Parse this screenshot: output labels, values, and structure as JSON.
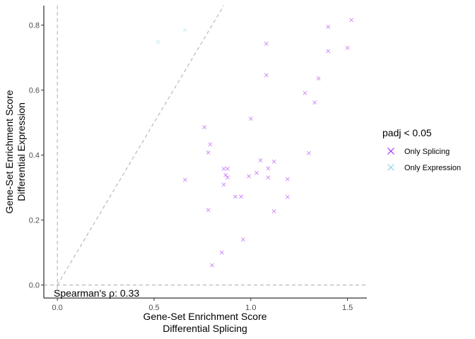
{
  "chart_data": {
    "type": "scatter",
    "xlabel": [
      "Gene-Set Enrichment Score",
      "Differential Splicing"
    ],
    "ylabel": [
      "Gene-Set Enrichment Score",
      "Differential Expression"
    ],
    "xlim": [
      -0.07,
      1.6
    ],
    "ylim": [
      -0.04,
      0.86
    ],
    "xticks": [
      0.0,
      0.5,
      1.0,
      1.5
    ],
    "xtick_labels": [
      "0.0",
      "0.5",
      "1.0",
      "1.5"
    ],
    "yticks": [
      0.0,
      0.2,
      0.4,
      0.6,
      0.8
    ],
    "ytick_labels": [
      "0.0",
      "0.2",
      "0.4",
      "0.6",
      "0.8"
    ],
    "grid": false,
    "reference_lines": [
      {
        "type": "vline",
        "x": 0,
        "style": "dashed",
        "color": "#b3b3b3"
      },
      {
        "type": "hline",
        "y": 0,
        "style": "dashed",
        "color": "#b3b3b3"
      },
      {
        "type": "diagonal",
        "slope": 1,
        "intercept": 0,
        "style": "dashed",
        "color": "#b3b3b3"
      }
    ],
    "annotation": "Spearman's ρ: 0.33",
    "legend": {
      "title": "padj < 0.05",
      "placement": "right",
      "entries": [
        "Only Splicing",
        "Only Expression"
      ]
    },
    "series": [
      {
        "name": "Only Splicing",
        "color": "#a020f0",
        "marker": "x",
        "points": [
          [
            1.52,
            0.816
          ],
          [
            1.4,
            0.795
          ],
          [
            1.4,
            0.72
          ],
          [
            1.5,
            0.73
          ],
          [
            1.08,
            0.743
          ],
          [
            1.08,
            0.646
          ],
          [
            1.35,
            0.636
          ],
          [
            1.28,
            0.591
          ],
          [
            1.33,
            0.562
          ],
          [
            1.0,
            0.512
          ],
          [
            0.76,
            0.486
          ],
          [
            0.79,
            0.433
          ],
          [
            0.78,
            0.408
          ],
          [
            1.3,
            0.406
          ],
          [
            1.05,
            0.384
          ],
          [
            1.12,
            0.38
          ],
          [
            0.66,
            0.324
          ],
          [
            0.86,
            0.358
          ],
          [
            0.88,
            0.358
          ],
          [
            1.09,
            0.359
          ],
          [
            0.87,
            0.339
          ],
          [
            1.03,
            0.345
          ],
          [
            0.99,
            0.335
          ],
          [
            0.88,
            0.331
          ],
          [
            1.09,
            0.331
          ],
          [
            1.19,
            0.326
          ],
          [
            0.86,
            0.309
          ],
          [
            0.92,
            0.272
          ],
          [
            0.95,
            0.272
          ],
          [
            1.19,
            0.271
          ],
          [
            0.78,
            0.231
          ],
          [
            1.12,
            0.227
          ],
          [
            0.96,
            0.14
          ],
          [
            0.85,
            0.1
          ],
          [
            0.8,
            0.061
          ]
        ]
      },
      {
        "name": "Only Expression",
        "color": "#87ceeb",
        "marker": "x",
        "points": [
          [
            0.52,
            0.748
          ],
          [
            0.66,
            0.785
          ]
        ]
      }
    ]
  }
}
